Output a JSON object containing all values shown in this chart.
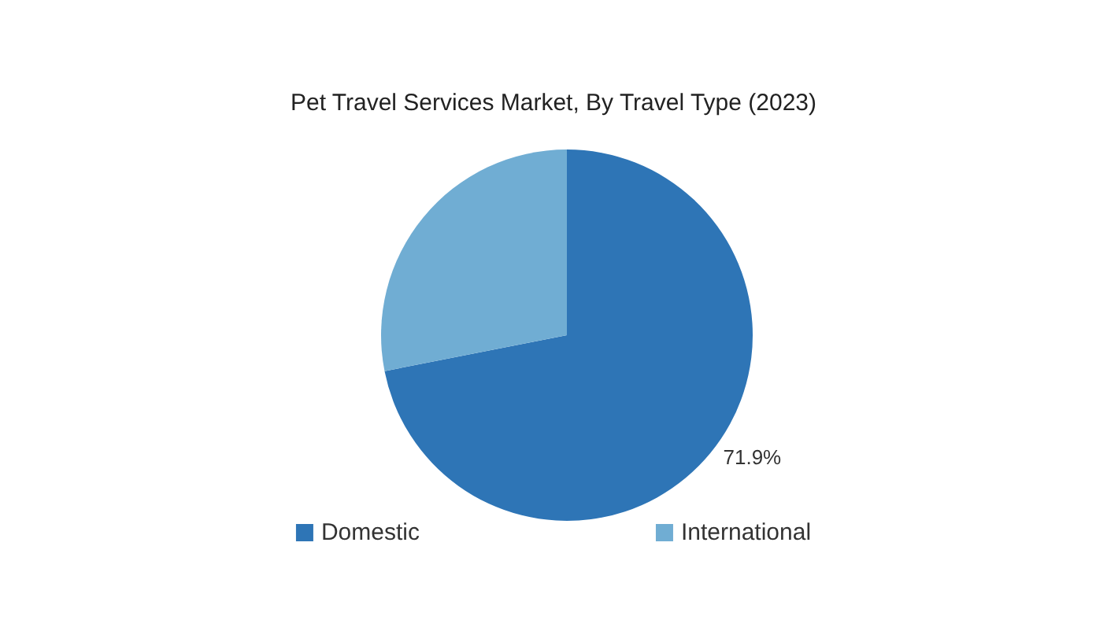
{
  "chart_data": {
    "type": "pie",
    "title": "Pet Travel Services Market, By Travel Type (2023)",
    "categories": [
      "Domestic",
      "International"
    ],
    "values": [
      71.9,
      28.1
    ],
    "colors": [
      "#2e75b6",
      "#70add3"
    ],
    "value_labels": [
      "71.9%",
      null
    ],
    "legend": "bottom"
  }
}
